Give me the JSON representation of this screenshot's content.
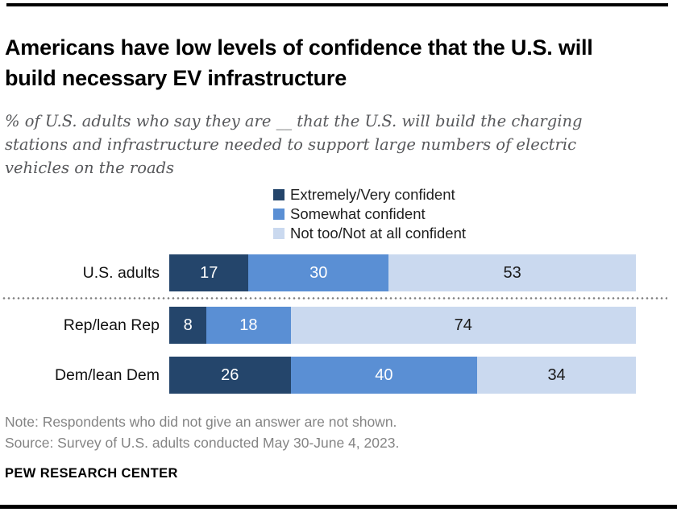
{
  "header": {
    "title": "Americans have low levels of confidence that the U.S. will build necessary EV infrastructure",
    "subtitle": "% of U.S. adults who say they are __ that the U.S. will build the charging stations and infrastructure needed to support large numbers of electric vehicles on the roads"
  },
  "legend": {
    "items": [
      {
        "label": "Extremely/Very confident",
        "color": "#24456B"
      },
      {
        "label": "Somewhat confident",
        "color": "#5A8FD4"
      },
      {
        "label": "Not too/Not at all confident",
        "color": "#CAD9EF"
      }
    ]
  },
  "chart_data": {
    "type": "bar",
    "variant": "horizontal-stacked",
    "unit": "percent",
    "xlim": [
      0,
      100
    ],
    "grid": false,
    "legend_position": "top-center",
    "categories": [
      "U.S. adults",
      "Rep/lean Rep",
      "Dem/lean Dem"
    ],
    "series": [
      {
        "name": "Extremely/Very confident",
        "color": "#24456B",
        "value_text_color": "#ffffff",
        "values": [
          17,
          8,
          26
        ]
      },
      {
        "name": "Somewhat confident",
        "color": "#5A8FD4",
        "value_text_color": "#ffffff",
        "values": [
          30,
          18,
          40
        ]
      },
      {
        "name": "Not too/Not at all confident",
        "color": "#CAD9EF",
        "value_text_color": "#1a1a1a",
        "values": [
          53,
          74,
          34
        ]
      }
    ],
    "data_labels_shown": true,
    "separator_after_category": "U.S. adults"
  },
  "footer": {
    "note": "Note: Respondents who did not give an answer are not shown.",
    "source": "Source: Survey of U.S. adults conducted May 30-June 4, 2023.",
    "brand": "PEW RESEARCH CENTER"
  }
}
